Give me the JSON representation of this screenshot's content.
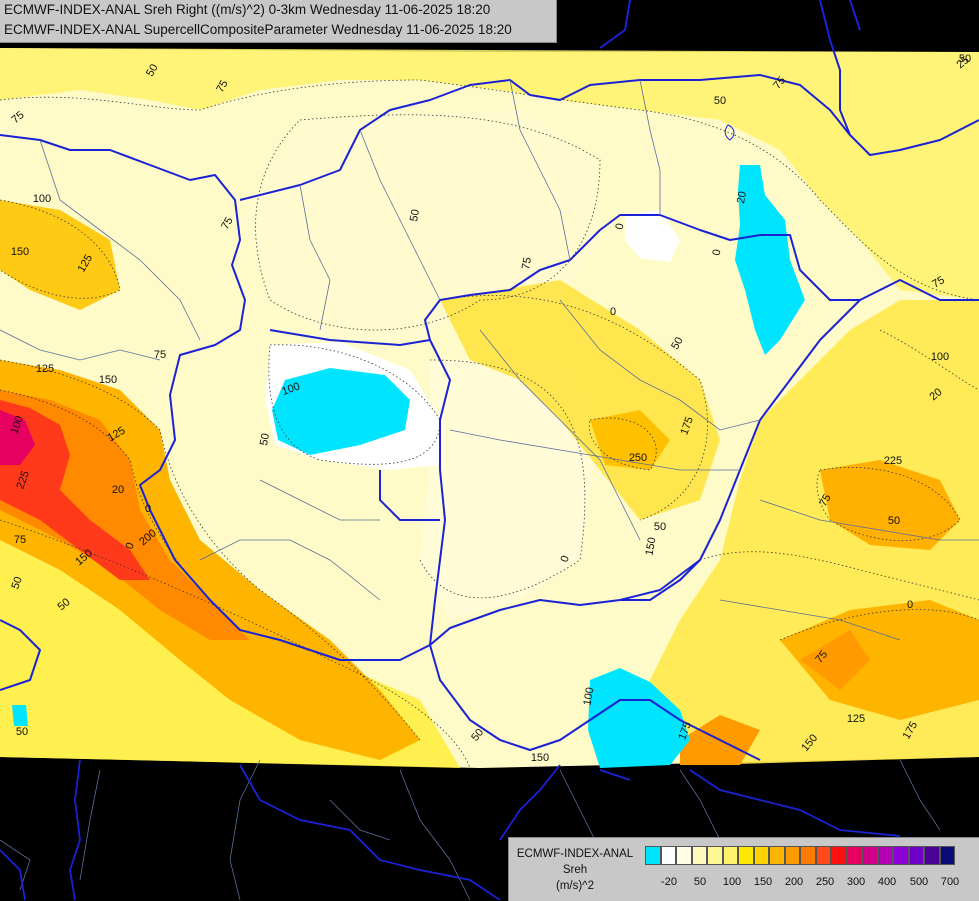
{
  "header": {
    "line1": "ECMWF-INDEX-ANAL Sreh Right ((m/s)^2) 0-3km Wednesday 11-06-2025 18:20",
    "line2": "ECMWF-INDEX-ANAL SupercellCompositeParameter Wednesday 11-06-2025 18:20"
  },
  "legend": {
    "title1": "ECMWF-INDEX-ANAL",
    "title2": "Sreh",
    "title3": "(m/s)^2",
    "colors": [
      "#00e5ff",
      "#ffffff",
      "#fffde6",
      "#fff9c0",
      "#fff696",
      "#fff06e",
      "#ffe800",
      "#ffd200",
      "#ffb400",
      "#ff9a00",
      "#ff7a00",
      "#ff4a1a",
      "#ff1010",
      "#e60060",
      "#d1008c",
      "#b400b4",
      "#8c00d7",
      "#6e00c8",
      "#4b0096",
      "#0a0a78"
    ],
    "tick_labels": [
      "-20",
      "50",
      "100",
      "150",
      "200",
      "250",
      "300",
      "400",
      "500",
      "700"
    ]
  },
  "contour_labels": [
    "50",
    "75",
    "75",
    "50",
    "75",
    "100",
    "150",
    "125",
    "75",
    "50",
    "75",
    "20",
    "0",
    "0",
    "0",
    "50",
    "75",
    "75",
    "100",
    "50",
    "125",
    "150",
    "100",
    "125",
    "225",
    "150",
    "250",
    "175",
    "75",
    "225",
    "50",
    "150",
    "0",
    "20",
    "0",
    "75",
    "125",
    "50",
    "100",
    "150",
    "175",
    "150",
    "175",
    "50",
    "75",
    "50",
    "50",
    "20",
    "0",
    "0",
    "25",
    "50",
    "100",
    "50",
    "200"
  ]
}
